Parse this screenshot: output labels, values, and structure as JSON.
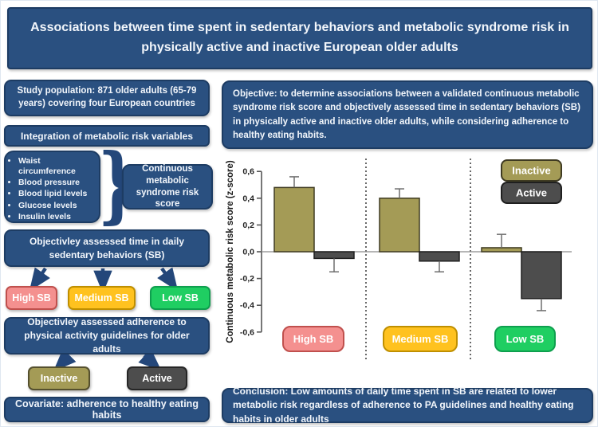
{
  "title": "Associations between time spent in sedentary behaviors and metabolic syndrome risk in physically active and inactive European older adults",
  "colors": {
    "navy": "#2A5080",
    "navy_border": "#1D3C63",
    "arrow": "#24477A",
    "olive": "#A49B56",
    "olive_border": "#55502E",
    "dark_gray": "#4D4D4D",
    "dark_gray_border": "#262626",
    "pink": "#F4908F",
    "pink_border": "#C0504D",
    "yellow": "#FFC21F",
    "yellow_border": "#BF8F00",
    "green": "#1FCE62",
    "green_border": "#0E9F4E"
  },
  "left": {
    "study_population": "Study population: 871 older adults (65-79 years) covering four European countries",
    "integration": "Integration of metabolic risk variables",
    "risk_variables": [
      "Waist circumference",
      "Blood pressure",
      "Blood lipid levels",
      "Glucose levels",
      "Insulin levels"
    ],
    "brace": "}",
    "continuous_score": "Continuous metabolic syndrome risk score",
    "sb_time": "Objectivley assessed time in daily sedentary behaviors (SB)",
    "sb_categories": [
      {
        "label": "High SB",
        "fill": "#F4908F",
        "border": "#C0504D"
      },
      {
        "label": "Medium SB",
        "fill": "#FFC21F",
        "border": "#BF8F00"
      },
      {
        "label": "Low SB",
        "fill": "#1FCE62",
        "border": "#0E9F4E"
      }
    ],
    "pa_adherence": "Objectivley assessed adherence to physical activity guidelines for older adults",
    "pa_groups": [
      {
        "label": "Inactive",
        "fill": "#A49B56",
        "border": "#55502E"
      },
      {
        "label": "Active",
        "fill": "#4D4D4D",
        "border": "#262626"
      }
    ],
    "covariate": "Covariate: adherence to healthy eating habits"
  },
  "right": {
    "objective": "Objective: to determine associations between a validated continuous metabolic syndrome risk score and objectively assessed time in sedentary behaviors (SB) in physically active and inactive older adults, while considering adherence to healthy eating habits.",
    "conclusion": "Conclusion: Low amounts of daily time spent in SB are related to lower metabolic risk regardless of adherence to PA guidelines and healthy eating habits in older adults"
  },
  "chart_data": {
    "type": "bar",
    "title": "",
    "ylabel": "Continuous metabolic risk score (z-score)",
    "xlabel": "",
    "ylim": [
      -0.6,
      0.6
    ],
    "yticks": [
      0.6,
      0.4,
      0.2,
      0.0,
      -0.2,
      -0.4,
      -0.6
    ],
    "ytick_labels": [
      "0,6",
      "0,4",
      "0,2",
      "0,0",
      "-0,2",
      "-0,4",
      "-0,6"
    ],
    "categories": [
      "High SB",
      "Medium SB",
      "Low SB"
    ],
    "series": [
      {
        "name": "Inactive",
        "values": [
          0.48,
          0.4,
          0.03
        ],
        "errors": [
          0.08,
          0.07,
          0.1
        ],
        "color": "#A49B56",
        "border": "#3F3B22"
      },
      {
        "name": "Active",
        "values": [
          -0.05,
          -0.07,
          -0.35
        ],
        "errors": [
          0.1,
          0.08,
          0.09
        ],
        "color": "#4D4D4D",
        "border": "#1F1F1F"
      }
    ],
    "category_labels": [
      {
        "label": "High SB",
        "fill": "#F4908F",
        "border": "#C0504D"
      },
      {
        "label": "Medium SB",
        "fill": "#FFC21F",
        "border": "#BF8F00"
      },
      {
        "label": "Low SB",
        "fill": "#1FCE62",
        "border": "#0E9F4E"
      }
    ],
    "legend_position": "top-right",
    "grid": false,
    "group_separators": "dotted vertical lines between SB groups"
  }
}
